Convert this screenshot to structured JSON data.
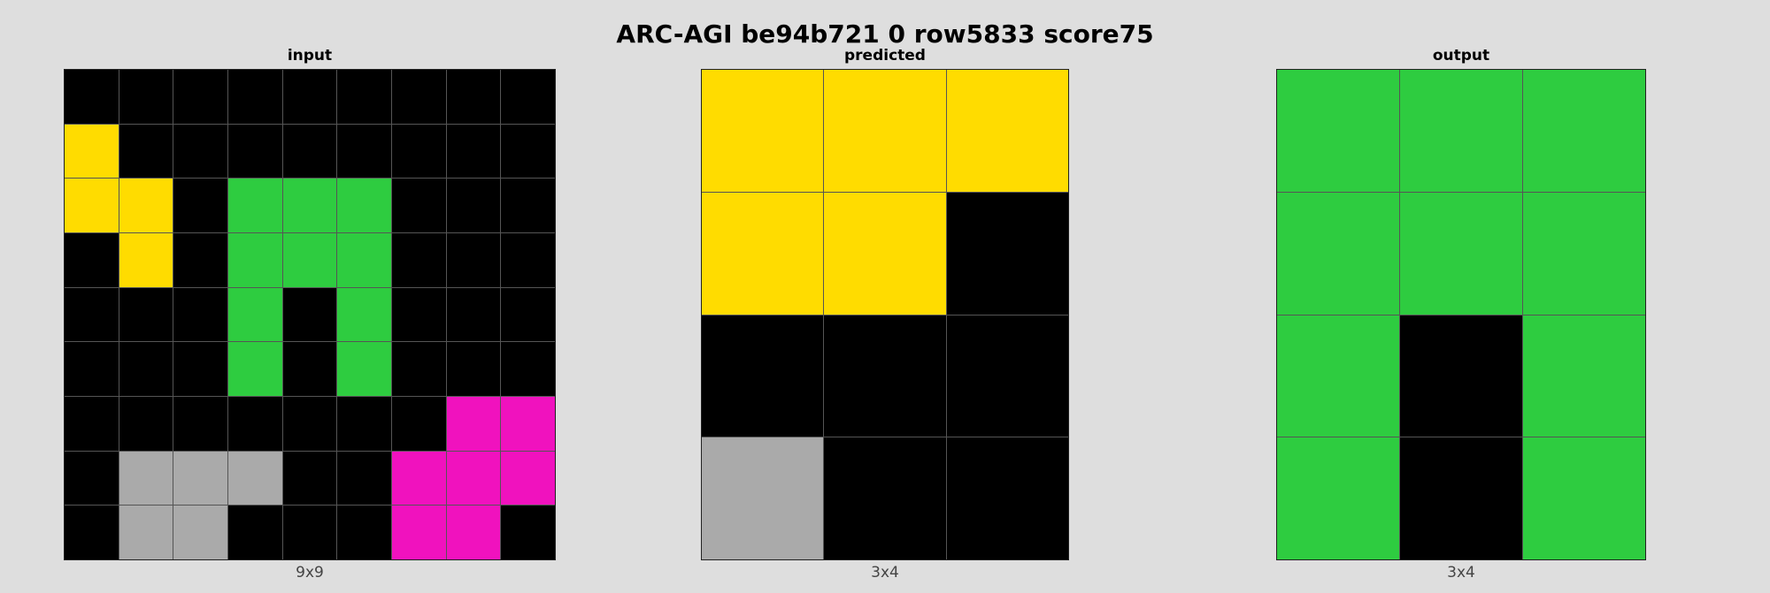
{
  "title": "ARC-AGI be94b721 0 row5833 score75",
  "palette": {
    "0": "#000000",
    "3": "#2ecc40",
    "4": "#ffdc00",
    "5": "#aaaaaa",
    "6": "#f012be"
  },
  "panels": [
    {
      "key": "input",
      "title": "input",
      "caption": "9x9",
      "rows": [
        [
          0,
          0,
          0,
          0,
          0,
          0,
          0,
          0,
          0
        ],
        [
          4,
          0,
          0,
          0,
          0,
          0,
          0,
          0,
          0
        ],
        [
          4,
          4,
          0,
          3,
          3,
          3,
          0,
          0,
          0
        ],
        [
          0,
          4,
          0,
          3,
          3,
          3,
          0,
          0,
          0
        ],
        [
          0,
          0,
          0,
          3,
          0,
          3,
          0,
          0,
          0
        ],
        [
          0,
          0,
          0,
          3,
          0,
          3,
          0,
          0,
          0
        ],
        [
          0,
          0,
          0,
          0,
          0,
          0,
          0,
          6,
          6
        ],
        [
          0,
          5,
          5,
          5,
          0,
          0,
          6,
          6,
          6
        ],
        [
          0,
          5,
          5,
          0,
          0,
          0,
          6,
          6,
          0
        ]
      ]
    },
    {
      "key": "predicted",
      "title": "predicted",
      "caption": "3x4",
      "rows": [
        [
          4,
          4,
          4
        ],
        [
          4,
          4,
          0
        ],
        [
          0,
          0,
          0
        ],
        [
          5,
          0,
          0
        ]
      ]
    },
    {
      "key": "output",
      "title": "output",
      "caption": "3x4",
      "rows": [
        [
          3,
          3,
          3
        ],
        [
          3,
          3,
          3
        ],
        [
          3,
          0,
          3
        ],
        [
          3,
          0,
          3
        ]
      ]
    }
  ]
}
